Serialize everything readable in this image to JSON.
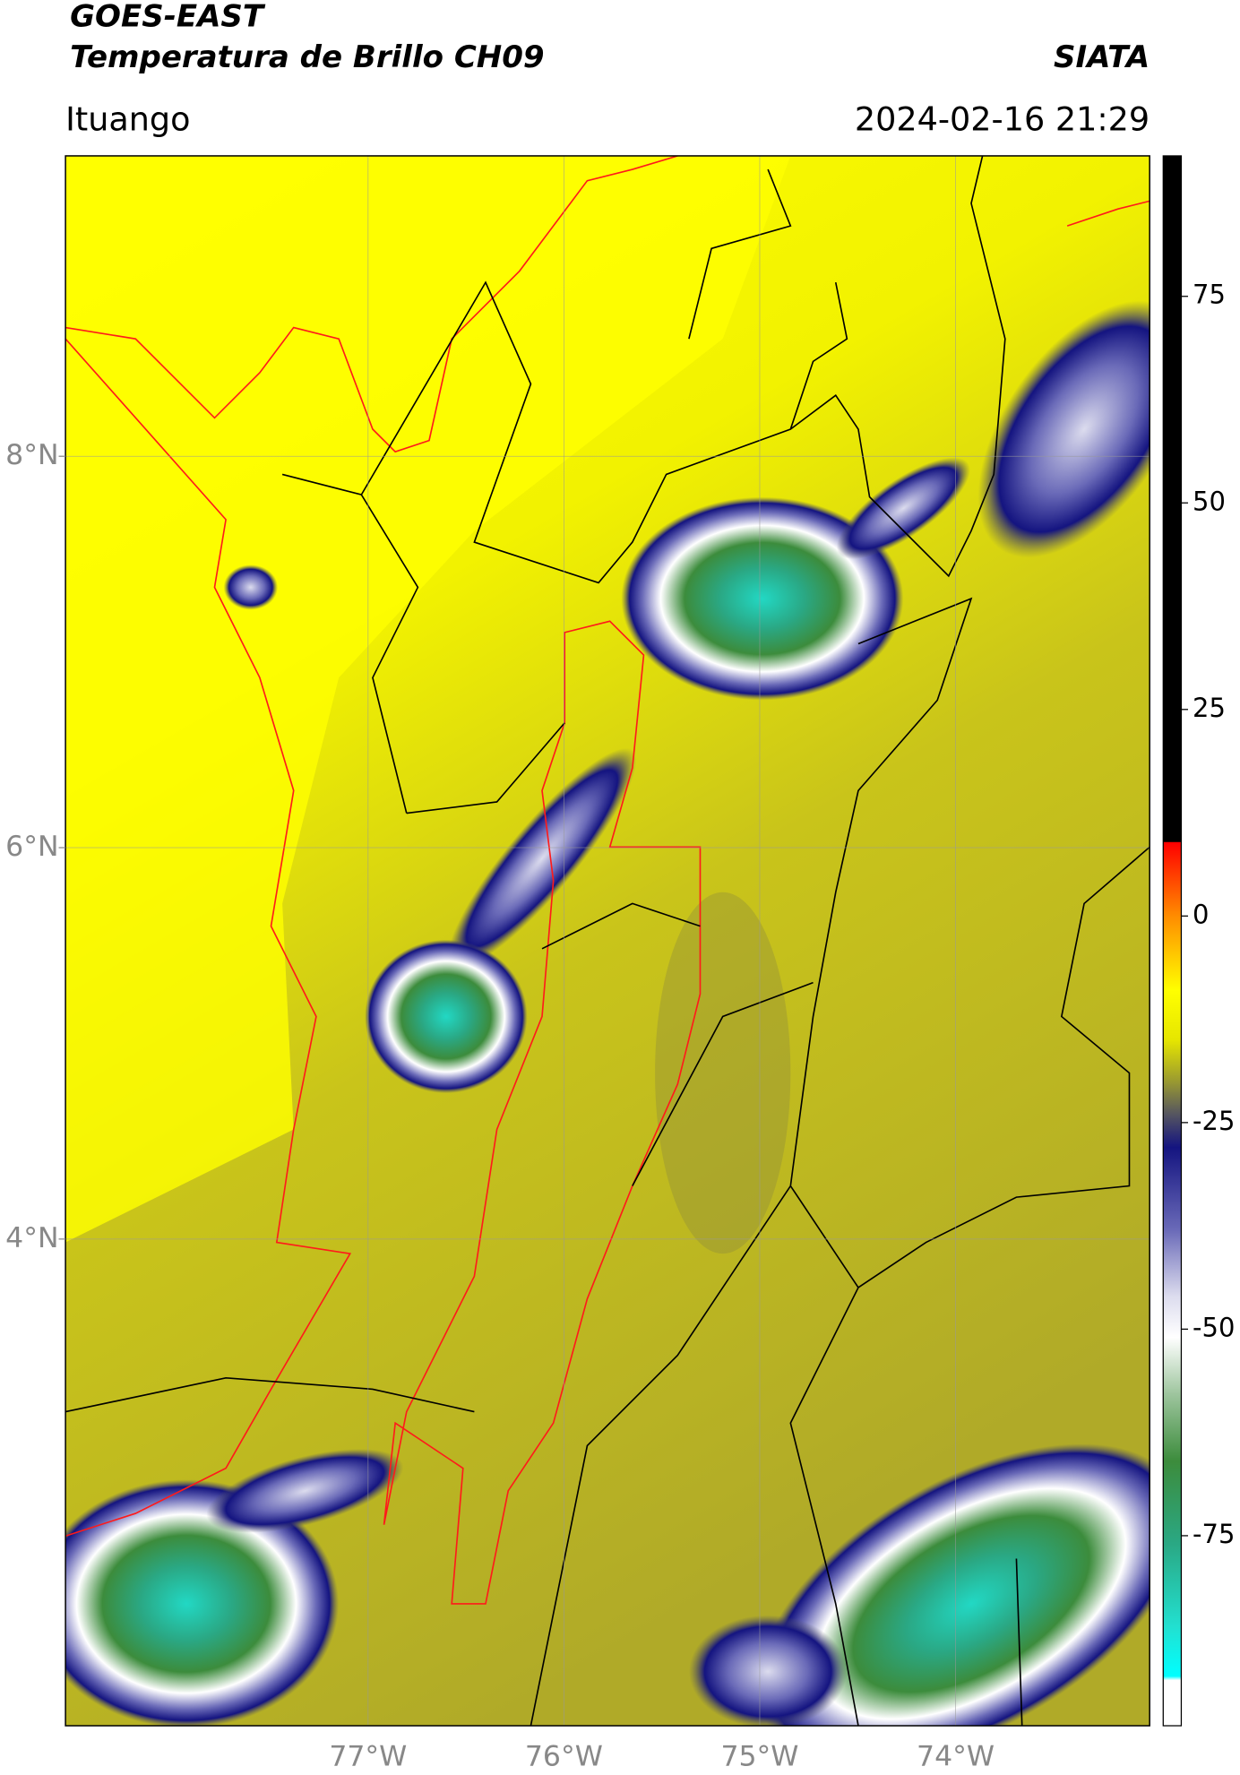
{
  "header": {
    "title": "GOES-EAST",
    "subtitle": "Temperatura de Brillo CH09",
    "agency": "SIATA",
    "location": "Ituango",
    "datetime": "2024-02-16 21:29"
  },
  "map": {
    "lon_range": [
      -78.545,
      -73.009
    ],
    "lat_range": [
      1.513,
      9.535
    ],
    "lon_ticks": [
      {
        "value": -77,
        "label": "77°W"
      },
      {
        "value": -76,
        "label": "76°W"
      },
      {
        "value": -75,
        "label": "75°W"
      },
      {
        "value": -74,
        "label": "74°W"
      }
    ],
    "lat_ticks": [
      {
        "value": 8,
        "label": "8°N"
      },
      {
        "value": 6,
        "label": "6°N"
      },
      {
        "value": 4,
        "label": "4°N"
      }
    ],
    "grid": true
  },
  "colorbar": {
    "range": [
      -98,
      92
    ],
    "ticks": [
      75,
      50,
      25,
      0,
      -25,
      -50,
      -75
    ],
    "stops": [
      {
        "value": 92,
        "color": "#000000"
      },
      {
        "value": 9,
        "color": "#000000"
      },
      {
        "value": 8.9,
        "color": "#ff0000"
      },
      {
        "value": 0,
        "color": "#ff8c00"
      },
      {
        "value": -9,
        "color": "#ffff00"
      },
      {
        "value": -15,
        "color": "#e6e600"
      },
      {
        "value": -20,
        "color": "#9a9a30"
      },
      {
        "value": -24,
        "color": "#555560"
      },
      {
        "value": -28,
        "color": "#141480"
      },
      {
        "value": -38,
        "color": "#6a6ab8"
      },
      {
        "value": -46,
        "color": "#dcdcee"
      },
      {
        "value": -51,
        "color": "#ffffff"
      },
      {
        "value": -58,
        "color": "#9cc49c"
      },
      {
        "value": -66,
        "color": "#3c8c3c"
      },
      {
        "value": -76,
        "color": "#2aa884"
      },
      {
        "value": -86,
        "color": "#22e0d0"
      },
      {
        "value": -92,
        "color": "#00ffff"
      },
      {
        "value": -92.5,
        "color": "#ffffff"
      },
      {
        "value": -98,
        "color": "#ffffff"
      }
    ]
  }
}
